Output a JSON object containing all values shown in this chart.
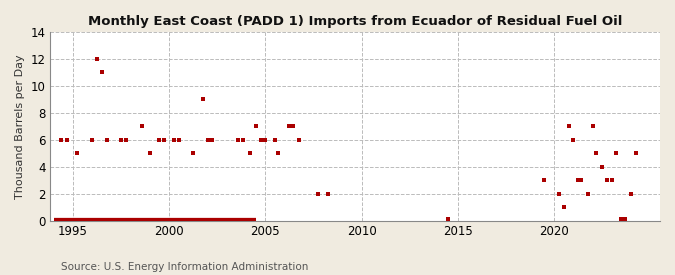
{
  "title": "Monthly East Coast (PADD 1) Imports from Ecuador of Residual Fuel Oil",
  "ylabel": "Thousand Barrels per Day",
  "source": "Source: U.S. Energy Information Administration",
  "background_color": "#f0ebe0",
  "plot_background_color": "#ffffff",
  "marker_color": "#aa0000",
  "ylim": [
    0,
    14
  ],
  "yticks": [
    0,
    2,
    4,
    6,
    8,
    10,
    12,
    14
  ],
  "xticks": [
    1995,
    2000,
    2005,
    2010,
    2015,
    2020
  ],
  "xlim": [
    1993.8,
    2025.5
  ],
  "zero_line_x": [
    1994.0,
    2004.5
  ],
  "data_points": [
    [
      1994.4,
      6.0
    ],
    [
      1994.7,
      6.0
    ],
    [
      1995.2,
      5.0
    ],
    [
      1996.0,
      6.0
    ],
    [
      1996.25,
      12.0
    ],
    [
      1996.5,
      11.0
    ],
    [
      1996.75,
      6.0
    ],
    [
      1997.5,
      6.0
    ],
    [
      1997.75,
      6.0
    ],
    [
      1998.6,
      7.0
    ],
    [
      1999.0,
      5.0
    ],
    [
      1999.5,
      6.0
    ],
    [
      1999.75,
      6.0
    ],
    [
      2000.25,
      6.0
    ],
    [
      2000.5,
      6.0
    ],
    [
      2001.25,
      5.0
    ],
    [
      2001.75,
      9.0
    ],
    [
      2002.0,
      6.0
    ],
    [
      2002.25,
      6.0
    ],
    [
      2003.6,
      6.0
    ],
    [
      2003.85,
      6.0
    ],
    [
      2004.2,
      5.0
    ],
    [
      2004.5,
      7.0
    ],
    [
      2004.75,
      6.0
    ],
    [
      2005.0,
      6.0
    ],
    [
      2005.5,
      6.0
    ],
    [
      2005.65,
      5.0
    ],
    [
      2006.25,
      7.0
    ],
    [
      2006.45,
      7.0
    ],
    [
      2006.75,
      6.0
    ],
    [
      2007.75,
      2.0
    ],
    [
      2008.25,
      2.0
    ],
    [
      2014.5,
      0.15
    ],
    [
      2019.5,
      3.0
    ],
    [
      2020.25,
      2.0
    ],
    [
      2020.5,
      1.0
    ],
    [
      2020.75,
      7.0
    ],
    [
      2021.0,
      6.0
    ],
    [
      2021.25,
      3.0
    ],
    [
      2021.4,
      3.0
    ],
    [
      2021.75,
      2.0
    ],
    [
      2022.0,
      7.0
    ],
    [
      2022.2,
      5.0
    ],
    [
      2022.5,
      4.0
    ],
    [
      2022.75,
      3.0
    ],
    [
      2023.0,
      3.0
    ],
    [
      2023.2,
      5.0
    ],
    [
      2023.5,
      0.1
    ],
    [
      2023.7,
      0.1
    ],
    [
      2024.0,
      2.0
    ],
    [
      2024.25,
      5.0
    ]
  ]
}
